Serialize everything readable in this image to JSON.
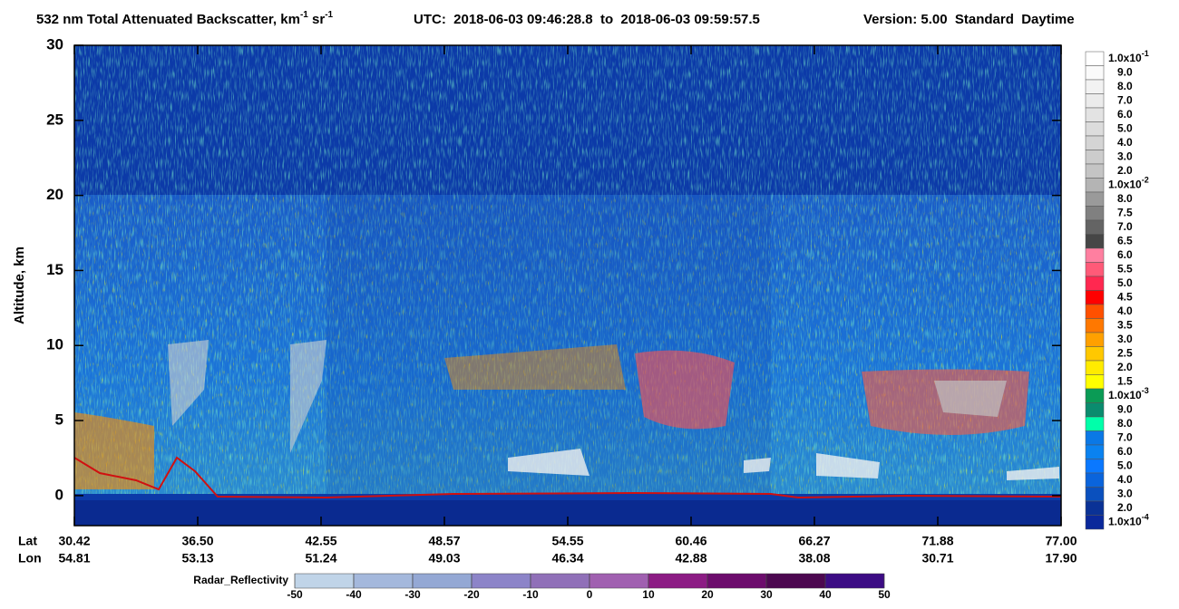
{
  "chart_data": {
    "type": "heatmap",
    "title": {
      "main": "532 nm Total Attenuated Backscatter, km",
      "exp1": "-1",
      "unit2": " sr",
      "exp2": "-1",
      "time": "UTC:  2018-06-03 09:46:28.8  to  2018-06-03 09:59:57.5",
      "version": "Version: 5.00  Standard  Daytime"
    },
    "y_label": "Altitude, km",
    "ylim": [
      -2,
      30
    ],
    "yticks": [
      0,
      5,
      10,
      15,
      20,
      25,
      30
    ],
    "x_rows": [
      {
        "name": "Lat",
        "values": [
          "30.42",
          "36.50",
          "42.55",
          "48.57",
          "54.55",
          "60.46",
          "66.27",
          "71.88",
          "77.00"
        ]
      },
      {
        "name": "Lon",
        "values": [
          "54.81",
          "53.13",
          "51.24",
          "49.03",
          "46.34",
          "42.88",
          "38.08",
          "30.71",
          "17.90"
        ]
      }
    ],
    "colorbar": {
      "labels": [
        {
          "text": "1.0x10",
          "exponent": "-1"
        },
        "9.0",
        "8.0",
        "7.0",
        "6.0",
        "5.0",
        "4.0",
        "3.0",
        "2.0",
        {
          "text": "1.0x10",
          "exponent": "-2"
        },
        "8.0",
        "7.5",
        "7.0",
        "6.5",
        "6.0",
        "5.5",
        "5.0",
        "4.5",
        "4.0",
        "3.5",
        "3.0",
        "2.5",
        "2.0",
        "1.5",
        {
          "text": "1.0x10",
          "exponent": "-3"
        },
        "9.0",
        "8.0",
        "7.0",
        "6.0",
        "5.0",
        "4.0",
        "3.0",
        "2.0",
        {
          "text": "1.0x10",
          "exponent": "-4"
        }
      ],
      "colors": [
        "#ffffff",
        "#fafafa",
        "#f2f2f2",
        "#ebebeb",
        "#e3e3e3",
        "#dcdcdc",
        "#d4d4d4",
        "#cccccc",
        "#c4c4c4",
        "#b4b4b4",
        "#9a9a9a",
        "#808080",
        "#646464",
        "#464646",
        "#ff7fa0",
        "#ff5a78",
        "#ff2850",
        "#ff0000",
        "#ff5000",
        "#ff7800",
        "#ffa000",
        "#ffc800",
        "#ffeb00",
        "#ffff00",
        "#0a9b55",
        "#0a8c6e",
        "#00ffaa",
        "#0a78e6",
        "#0a82f0",
        "#0a78ff",
        "#0a64dc",
        "#0a50be",
        "#0a3296",
        "#0a289b"
      ]
    },
    "radar_colorbar": {
      "label": "Radar_Reflectivity",
      "ticks": [
        -50,
        -40,
        -30,
        -20,
        -10,
        0,
        10,
        20,
        30,
        40,
        50
      ],
      "colors": [
        "#c0d4e8",
        "#a4b8dc",
        "#94a8d4",
        "#8c84c8",
        "#9070b8",
        "#a060b0",
        "#8c1c84",
        "#6c0c6c",
        "#4c0850",
        "#3c0c84"
      ]
    }
  }
}
